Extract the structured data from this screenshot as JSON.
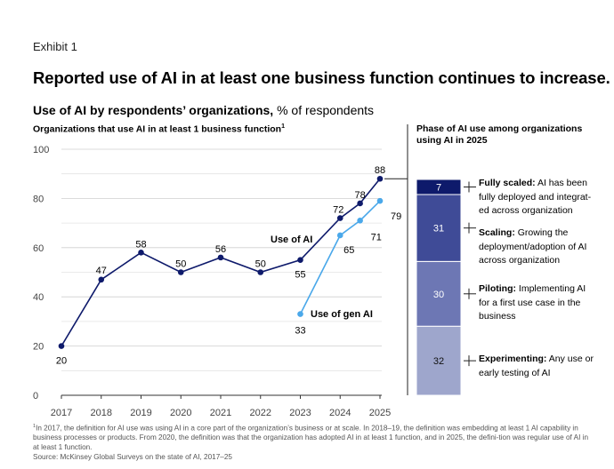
{
  "exhibit": "Exhibit 1",
  "headline": "Reported use of AI in at least one business function continues to increase.",
  "subtitle": {
    "bold": "Use of AI by respondents’ organizations,",
    "rest": " % of respondents"
  },
  "left_title": {
    "text": "Organizations that use AI in at least 1 business function",
    "sup": "1"
  },
  "right_title": "Phase of AI use among organizations using AI in 2025",
  "chart_data": [
    {
      "type": "line",
      "title": "Organizations that use AI in at least 1 business function",
      "x_ticks": [
        "2017",
        "2018",
        "2019",
        "2020",
        "2021",
        "2022",
        "2023",
        "2024",
        "2025"
      ],
      "y_ticks": [
        "0",
        "20",
        "40",
        "60",
        "80",
        "100"
      ],
      "ylim": [
        0,
        100
      ],
      "grid": true,
      "series": [
        {
          "name": "Use of AI",
          "color": "#0e1a6b",
          "x": [
            2017,
            2018,
            2019,
            2020,
            2021,
            2022,
            2023,
            2024,
            2024.5,
            2025
          ],
          "values": [
            20,
            47,
            58,
            50,
            56,
            50,
            55,
            72,
            78,
            88
          ],
          "labels": [
            "20",
            "47",
            "58",
            "50",
            "56",
            "50",
            "55",
            "72",
            "78",
            "88"
          ]
        },
        {
          "name": "Use of gen AI",
          "color": "#4aa8ea",
          "x": [
            2023,
            2024,
            2024.5,
            2025
          ],
          "values": [
            33,
            65,
            71,
            79
          ],
          "labels": [
            "33",
            "65",
            "71",
            "79"
          ]
        }
      ]
    },
    {
      "type": "bar",
      "stacked": true,
      "title": "Phase of AI use among organizations using AI in 2025",
      "categories": [
        "2025"
      ],
      "series": [
        {
          "name": "Experimenting",
          "values": [
            32
          ],
          "color": "#9ea6cc",
          "label": "32"
        },
        {
          "name": "Piloting",
          "values": [
            30
          ],
          "color": "#6d77b4",
          "label": "30"
        },
        {
          "name": "Scaling",
          "values": [
            31
          ],
          "color": "#3f4b97",
          "label": "31"
        },
        {
          "name": "Fully scaled",
          "values": [
            7
          ],
          "color": "#0e1a6b",
          "label": "7"
        }
      ]
    }
  ],
  "phases": [
    {
      "name": "Fully scaled:",
      "desc": " AI has been fully deployed and integrat-ed across organization"
    },
    {
      "name": "Scaling:",
      "desc": " Growing the deployment/adoption of AI across organization"
    },
    {
      "name": "Piloting:",
      "desc": " Implementing AI for a first use case in the business"
    },
    {
      "name": "Experimenting:",
      "desc": " Any use or early testing of AI"
    }
  ],
  "footnote": {
    "sup": "1",
    "text": "In 2017, the definition for AI use was using AI in a core part of the organization’s business or at scale. In 2018–19, the definition was embedding at least 1 AI capability in business processes or products. From 2020, the definition was that the organization has adopted AI in at least 1 function, and in 2025, the defini-tion was regular use of AI in at least 1 function.",
    "source": "Source: McKinsey Global Surveys on the state of AI, 2017–25"
  }
}
